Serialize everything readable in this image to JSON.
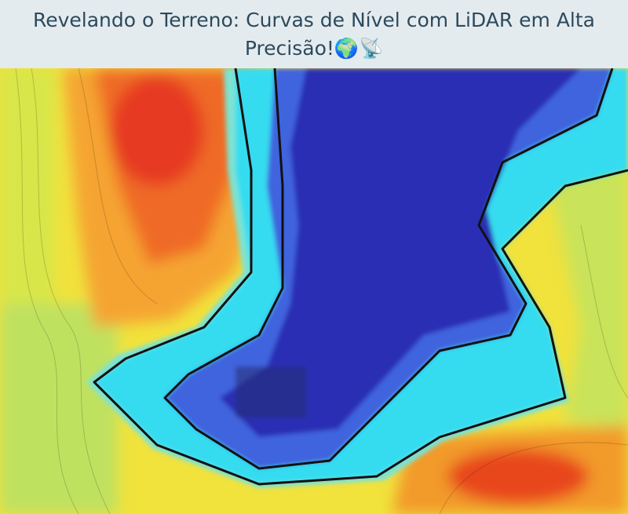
{
  "header": {
    "title": "Revelando o Terreno: Curvas de Nível com LiDAR em Alta Precisão!🌍📡"
  }
}
